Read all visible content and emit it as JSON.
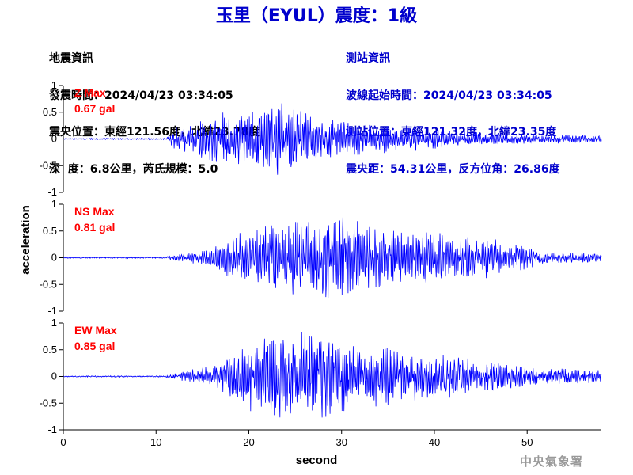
{
  "title": "玉里（EYUL）震度：1級",
  "earthquake_info": {
    "heading": "地震資訊",
    "time": "發震時間：2024/04/23 03:34:05",
    "epicenter": "震央位置：東經121.56度，北緯23.78度",
    "depth_magnitude": "深  度：6.8公里，芮氏規模：5.0"
  },
  "station_info": {
    "heading": "測站資訊",
    "wave_start": "波線起始時間：2024/04/23 03:34:05",
    "location": "測站位置：東經121.32度，北緯23.35度",
    "distance": "震央距：54.31公里，反方位角：26.86度"
  },
  "agency": "中央氣象署",
  "colors": {
    "title": "#0000cc",
    "trace": "#0000ff",
    "max_label": "#ff0000",
    "axis": "#000000"
  },
  "chart_data": {
    "type": "line",
    "xlabel": "second",
    "ylabel": "acceleration",
    "xlim": [
      0,
      58
    ],
    "x_ticks": [
      0,
      10,
      20,
      30,
      40,
      50
    ],
    "ylim": [
      -1,
      1
    ],
    "y_ticks": [
      "1",
      "0.5",
      "0",
      "-0.5",
      "-1"
    ],
    "grid": false,
    "panels": [
      {
        "component": "Z",
        "label": "Z Max",
        "max_value": "0.67 gal",
        "peak": 0.67,
        "envelope": [
          [
            0,
            0.01
          ],
          [
            11,
            0.015
          ],
          [
            12,
            0.18
          ],
          [
            15,
            0.35
          ],
          [
            17,
            0.45
          ],
          [
            20,
            0.42
          ],
          [
            23,
            0.62
          ],
          [
            27,
            0.4
          ],
          [
            32,
            0.28
          ],
          [
            38,
            0.2
          ],
          [
            45,
            0.11
          ],
          [
            52,
            0.08
          ],
          [
            58,
            0.06
          ]
        ]
      },
      {
        "component": "NS",
        "label": "NS Max",
        "max_value": "0.81 gal",
        "peak": 0.81,
        "envelope": [
          [
            0,
            0.01
          ],
          [
            11,
            0.015
          ],
          [
            12,
            0.06
          ],
          [
            16,
            0.15
          ],
          [
            19,
            0.5
          ],
          [
            22,
            0.62
          ],
          [
            26,
            0.7
          ],
          [
            30,
            0.78
          ],
          [
            35,
            0.55
          ],
          [
            40,
            0.45
          ],
          [
            45,
            0.38
          ],
          [
            50,
            0.2
          ],
          [
            53,
            0.1
          ],
          [
            58,
            0.08
          ]
        ]
      },
      {
        "component": "EW",
        "label": "EW Max",
        "max_value": "0.85 gal",
        "peak": 0.85,
        "envelope": [
          [
            0,
            0.01
          ],
          [
            11,
            0.015
          ],
          [
            12,
            0.06
          ],
          [
            16,
            0.2
          ],
          [
            19,
            0.55
          ],
          [
            22,
            0.72
          ],
          [
            26,
            0.82
          ],
          [
            29,
            0.75
          ],
          [
            34,
            0.55
          ],
          [
            38,
            0.45
          ],
          [
            42,
            0.38
          ],
          [
            47,
            0.25
          ],
          [
            51,
            0.15
          ],
          [
            58,
            0.12
          ]
        ]
      }
    ]
  }
}
